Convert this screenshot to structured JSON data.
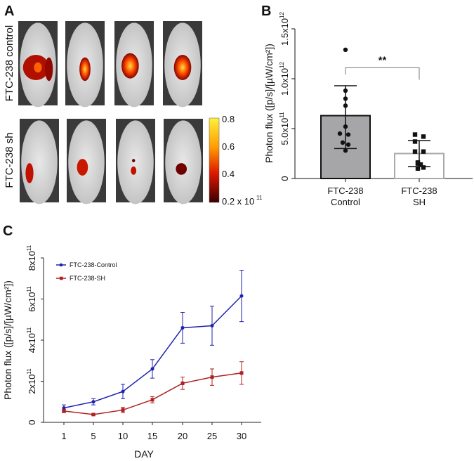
{
  "panel_labels": {
    "a": "A",
    "b": "B",
    "c": "C"
  },
  "panel_a": {
    "row_labels": [
      "FTC-238 control",
      "FTC-238 sh"
    ],
    "colorbar": {
      "ticks": [
        "0.8",
        "0.6",
        "0.4",
        "0.2 x 10"
      ],
      "exponent": "11",
      "colors": [
        "#fff23a",
        "#ff9a00",
        "#e01800",
        "#3a0000"
      ]
    }
  },
  "chart_data": [
    {
      "type": "bar",
      "panel": "B",
      "categories": [
        [
          "FTC-238",
          "Control"
        ],
        [
          "FTC-238",
          "SH"
        ]
      ],
      "ylabel": "Photon flux ([p/s]/[µW/cm²])",
      "ylim": [
        0,
        1500000000000.0
      ],
      "yticks": [
        {
          "v": 0,
          "label": "0",
          "exp": ""
        },
        {
          "v": 500000000000.0,
          "label": "5.0x10",
          "exp": "11"
        },
        {
          "v": 1000000000000.0,
          "label": "1.0x10",
          "exp": "12"
        },
        {
          "v": 1500000000000.0,
          "label": "1.5x10",
          "exp": "12"
        }
      ],
      "values": [
        630000000000.0,
        250000000000.0
      ],
      "error_low": [
        300000000000.0,
        120000000000.0
      ],
      "error_high": [
        930000000000.0,
        380000000000.0
      ],
      "points": [
        [
          1290000000000.0,
          880000000000.0,
          800000000000.0,
          730000000000.0,
          520000000000.0,
          450000000000.0,
          440000000000.0,
          360000000000.0,
          340000000000.0,
          280000000000.0
        ],
        [
          440000000000.0,
          420000000000.0,
          370000000000.0,
          270000000000.0,
          270000000000.0,
          160000000000.0,
          150000000000.0,
          140000000000.0,
          100000000000.0,
          110000000000.0
        ]
      ],
      "bar_colors": [
        "#a6a6a8",
        "#ffffff"
      ],
      "bar_edges": [
        "#111111",
        "#aaaaaa"
      ],
      "significance": "**"
    },
    {
      "type": "line",
      "panel": "C",
      "xlabel": "DAY",
      "ylabel": "Photon flux ([p/s]/[µW/cm²])",
      "x": [
        1,
        5,
        10,
        15,
        20,
        25,
        30
      ],
      "ylim": [
        0,
        800000000000.0
      ],
      "yticks": [
        {
          "v": 0,
          "label": "0",
          "exp": ""
        },
        {
          "v": 200000000000.0,
          "label": "2x10",
          "exp": "11"
        },
        {
          "v": 400000000000.0,
          "label": "4x10",
          "exp": "11"
        },
        {
          "v": 600000000000.0,
          "label": "6x10",
          "exp": "11"
        },
        {
          "v": 800000000000.0,
          "label": "8x10",
          "exp": "11"
        }
      ],
      "legend_position": "top-left",
      "series": [
        {
          "name": "FTC-238-Control",
          "color": "#1f22b0",
          "marker": "circle",
          "values": [
            70000000000.0,
            100000000000.0,
            150000000000.0,
            260000000000.0,
            460000000000.0,
            470000000000.0,
            615000000000.0
          ],
          "errors": [
            15000000000.0,
            15000000000.0,
            35000000000.0,
            45000000000.0,
            75000000000.0,
            95000000000.0,
            125000000000.0
          ]
        },
        {
          "name": "FTC-238-SH",
          "color": "#b02020",
          "marker": "square",
          "values": [
            55000000000.0,
            38000000000.0,
            60000000000.0,
            110000000000.0,
            190000000000.0,
            220000000000.0,
            240000000000.0
          ],
          "errors": [
            8000000000.0,
            4000000000.0,
            13000000000.0,
            15000000000.0,
            30000000000.0,
            40000000000.0,
            55000000000.0
          ]
        }
      ]
    }
  ]
}
